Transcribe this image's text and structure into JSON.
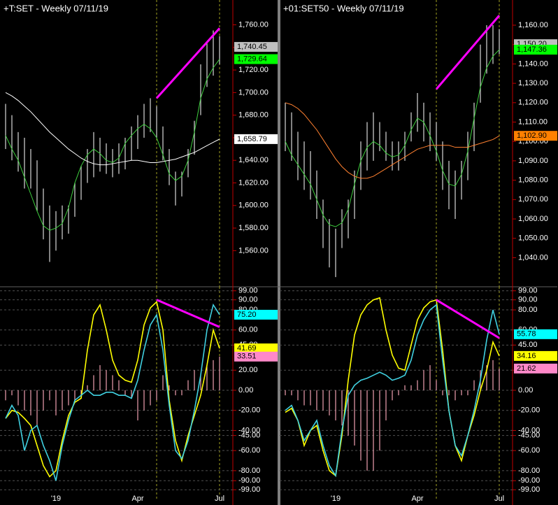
{
  "chart_data": [
    {
      "type": "ohlc",
      "title": "+T:SET - Weekly  07/11/19",
      "ylim": [
        1528,
        1782
      ],
      "yticks": [
        {
          "value": 1560,
          "label": "1,560.00"
        },
        {
          "value": 1580,
          "label": "1,580.00"
        },
        {
          "value": 1600,
          "label": "1,600.00"
        },
        {
          "value": 1620,
          "label": "1,620.00"
        },
        {
          "value": 1640,
          "label": "1,640.00"
        },
        {
          "value": 1660,
          "label": "1,660.00"
        },
        {
          "value": 1680,
          "label": "1,680.00"
        },
        {
          "value": 1700,
          "label": "1,700.00"
        },
        {
          "value": 1720,
          "label": "1,720.00"
        },
        {
          "value": 1740,
          "label": "1,740.00"
        },
        {
          "value": 1760,
          "label": "1,760.00"
        }
      ],
      "bar_color": "#d8d8d8",
      "high": [
        1690,
        1680,
        1665,
        1660,
        1650,
        1640,
        1615,
        1600,
        1595,
        1600,
        1600,
        1620,
        1635,
        1650,
        1665,
        1660,
        1655,
        1650,
        1655,
        1660,
        1670,
        1680,
        1690,
        1695,
        1688,
        1670,
        1650,
        1630,
        1630,
        1650,
        1675,
        1725,
        1745,
        1755,
        1750
      ],
      "low": [
        1650,
        1640,
        1630,
        1615,
        1615,
        1595,
        1570,
        1550,
        1560,
        1570,
        1575,
        1590,
        1605,
        1620,
        1625,
        1630,
        1628,
        1625,
        1628,
        1632,
        1640,
        1650,
        1660,
        1665,
        1660,
        1640,
        1618,
        1600,
        1608,
        1625,
        1645,
        1680,
        1705,
        1715,
        1725
      ],
      "lines": [
        {
          "color": "#3ecf3e",
          "values": [
            1662,
            1650,
            1640,
            1625,
            1610,
            1595,
            1582,
            1578,
            1580,
            1584,
            1598,
            1620,
            1635,
            1645,
            1650,
            1646,
            1640,
            1638,
            1642,
            1655,
            1662,
            1668,
            1672,
            1668,
            1660,
            1645,
            1628,
            1622,
            1626,
            1640,
            1665,
            1695,
            1712,
            1722,
            1729.64
          ]
        },
        {
          "color": "#ffffff",
          "values": [
            1700,
            1697,
            1693,
            1688,
            1683,
            1677,
            1671,
            1665,
            1660,
            1655,
            1650,
            1646,
            1642,
            1639,
            1637,
            1636,
            1636,
            1637,
            1638,
            1639,
            1640,
            1640,
            1639,
            1638,
            1638,
            1639,
            1640,
            1641,
            1643,
            1645,
            1647,
            1650,
            1653,
            1656,
            1658.79
          ]
        }
      ],
      "trend": {
        "color": "#ff00ff",
        "x": [
          24,
          34
        ],
        "values": [
          1695,
          1757
        ]
      },
      "value_labels": [
        {
          "value": 1740.45,
          "label": "1,740.45",
          "color": "#c0c0c0"
        },
        {
          "value": 1729.64,
          "label": "1,729.64",
          "color": "#00ff00"
        },
        {
          "value": 1658.79,
          "label": "1,658.79",
          "color": "#ffffff"
        }
      ]
    },
    {
      "type": "oscillator",
      "ylim": [
        -110,
        103
      ],
      "grid": true,
      "yticks": [
        {
          "value": 99,
          "label": "99.00"
        },
        {
          "value": 90,
          "label": "90.00"
        },
        {
          "value": 80,
          "label": "80.00"
        },
        {
          "value": 60,
          "label": "60.00"
        },
        {
          "value": 45,
          "label": "45.00"
        },
        {
          "value": 20,
          "label": "20.00"
        },
        {
          "value": 0,
          "label": "0.00"
        },
        {
          "value": -20,
          "label": "-20.00"
        },
        {
          "value": -40,
          "label": "-40.00"
        },
        {
          "value": -45,
          "label": "-45.00"
        },
        {
          "value": -60,
          "label": "-60.00"
        },
        {
          "value": -80,
          "label": "-80.00"
        },
        {
          "value": -90,
          "label": "-90.00"
        },
        {
          "value": -99,
          "label": "-99.00"
        }
      ],
      "categories": [
        null,
        null,
        null,
        null,
        null,
        null,
        null,
        null,
        "'19",
        null,
        null,
        null,
        null,
        null,
        null,
        null,
        null,
        null,
        null,
        null,
        null,
        "Apr",
        null,
        null,
        null,
        null,
        null,
        null,
        null,
        null,
        null,
        null,
        null,
        null,
        "Jul"
      ],
      "histogram": {
        "color": "#f0a0b0",
        "values": [
          -10,
          -5,
          -15,
          -20,
          -25,
          -35,
          -20,
          -10,
          -25,
          -20,
          -15,
          -12,
          -8,
          5,
          15,
          25,
          20,
          15,
          10,
          -5,
          -8,
          -30,
          -20,
          -15,
          -10,
          15,
          5,
          -5,
          -5,
          10,
          20,
          15,
          25,
          30,
          33.51
        ]
      },
      "lines": [
        {
          "color": "#ffff00",
          "values": [
            -28,
            -20,
            -22,
            -28,
            -35,
            -55,
            -75,
            -86,
            -80,
            -50,
            -25,
            -12,
            -8,
            40,
            75,
            85,
            60,
            30,
            15,
            10,
            8,
            30,
            65,
            82,
            88,
            60,
            -10,
            -50,
            -70,
            -45,
            -25,
            -5,
            25,
            60,
            41.69
          ]
        },
        {
          "color": "#40d0e0",
          "values": [
            -28,
            -15,
            -25,
            -60,
            -40,
            -35,
            -55,
            -70,
            -90,
            -55,
            -30,
            -10,
            -5,
            0,
            -5,
            -5,
            -2,
            -2,
            -5,
            -5,
            -8,
            10,
            40,
            65,
            75,
            40,
            -15,
            -60,
            -68,
            -50,
            -20,
            15,
            60,
            85,
            75.2
          ]
        }
      ],
      "trend": {
        "color": "#ff00ff",
        "x": [
          24,
          34
        ],
        "values": [
          90,
          63
        ]
      },
      "value_labels": [
        {
          "value": 75.2,
          "label": "75.20",
          "color": "#00ffff"
        },
        {
          "value": 41.69,
          "label": "41.69",
          "color": "#ffff00"
        },
        {
          "value": 33.51,
          "label": "33.51",
          "color": "#ff88c8"
        }
      ]
    },
    {
      "type": "ohlc",
      "title": "+01:SET50 - Weekly  07/11/19",
      "ylim": [
        1025,
        1173
      ],
      "yticks": [
        {
          "value": 1040,
          "label": "1,040.00"
        },
        {
          "value": 1050,
          "label": "1,050.00"
        },
        {
          "value": 1060,
          "label": "1,060.00"
        },
        {
          "value": 1070,
          "label": "1,070.00"
        },
        {
          "value": 1080,
          "label": "1,080.00"
        },
        {
          "value": 1090,
          "label": "1,090.00"
        },
        {
          "value": 1100,
          "label": "1,100.00"
        },
        {
          "value": 1110,
          "label": "1,110.00"
        },
        {
          "value": 1120,
          "label": "1,120.00"
        },
        {
          "value": 1130,
          "label": "1,130.00"
        },
        {
          "value": 1140,
          "label": "1,140.00"
        },
        {
          "value": 1150,
          "label": "1,150.00"
        },
        {
          "value": 1160,
          "label": "1,160.00"
        }
      ],
      "bar_color": "#d8d8d8",
      "high": [
        1120,
        1115,
        1105,
        1100,
        1095,
        1085,
        1070,
        1060,
        1055,
        1065,
        1070,
        1085,
        1100,
        1110,
        1115,
        1110,
        1105,
        1100,
        1100,
        1105,
        1115,
        1125,
        1120,
        1115,
        1110,
        1100,
        1090,
        1085,
        1090,
        1105,
        1120,
        1150,
        1160,
        1160,
        1158
      ],
      "low": [
        1095,
        1090,
        1080,
        1075,
        1070,
        1060,
        1045,
        1035,
        1030,
        1045,
        1050,
        1060,
        1075,
        1085,
        1090,
        1095,
        1090,
        1085,
        1085,
        1090,
        1100,
        1105,
        1100,
        1095,
        1090,
        1075,
        1065,
        1060,
        1070,
        1080,
        1095,
        1120,
        1135,
        1140,
        1145
      ],
      "lines": [
        {
          "color": "#3ecf3e",
          "values": [
            1100,
            1093,
            1088,
            1083,
            1078,
            1070,
            1062,
            1057,
            1056,
            1058,
            1065,
            1078,
            1090,
            1097,
            1100,
            1098,
            1094,
            1092,
            1093,
            1098,
            1106,
            1112,
            1110,
            1103,
            1095,
            1085,
            1078,
            1077,
            1083,
            1095,
            1112,
            1128,
            1138,
            1144,
            1147.36
          ]
        },
        {
          "color": "#ff8030",
          "values": [
            1120,
            1119,
            1117,
            1114,
            1110,
            1106,
            1101,
            1096,
            1091,
            1087,
            1084,
            1082,
            1081,
            1081,
            1082,
            1084,
            1086,
            1088,
            1090,
            1092,
            1094,
            1096,
            1097,
            1098,
            1098,
            1098,
            1098,
            1097,
            1097,
            1097,
            1098,
            1099,
            1100,
            1101,
            1102.9
          ]
        }
      ],
      "trend": {
        "color": "#ff00ff",
        "x": [
          24,
          34
        ],
        "values": [
          1127,
          1165
        ]
      },
      "value_labels": [
        {
          "value": 1150.2,
          "label": "1,150.20",
          "color": "#c0c0c0"
        },
        {
          "value": 1147.36,
          "label": "1,147.36",
          "color": "#00ff00"
        },
        {
          "value": 1102.9,
          "label": "1,102.90",
          "color": "#ff8000"
        }
      ]
    },
    {
      "type": "oscillator",
      "ylim": [
        -110,
        103
      ],
      "grid": true,
      "yticks": [
        {
          "value": 99,
          "label": "99.00"
        },
        {
          "value": 90,
          "label": "90.00"
        },
        {
          "value": 80,
          "label": "80.00"
        },
        {
          "value": 60,
          "label": "60.00"
        },
        {
          "value": 45,
          "label": "45.00"
        },
        {
          "value": 20,
          "label": "20.00"
        },
        {
          "value": 0,
          "label": "0.00"
        },
        {
          "value": -20,
          "label": "-20.00"
        },
        {
          "value": -40,
          "label": "-40.00"
        },
        {
          "value": -45,
          "label": "-45.00"
        },
        {
          "value": -60,
          "label": "-60.00"
        },
        {
          "value": -80,
          "label": "-80.00"
        },
        {
          "value": -90,
          "label": "-90.00"
        },
        {
          "value": -99,
          "label": "-99.00"
        }
      ],
      "categories": [
        null,
        null,
        null,
        null,
        null,
        null,
        null,
        null,
        "'19",
        null,
        null,
        null,
        null,
        null,
        null,
        null,
        null,
        null,
        null,
        null,
        null,
        "Apr",
        null,
        null,
        null,
        null,
        null,
        null,
        null,
        null,
        null,
        null,
        null,
        null,
        "Jul"
      ],
      "histogram": {
        "color": "#f0a0b0",
        "values": [
          -5,
          -5,
          -10,
          -15,
          -15,
          -20,
          -20,
          -25,
          -30,
          -35,
          -45,
          -55,
          -70,
          -80,
          -80,
          -60,
          -30,
          -10,
          -5,
          5,
          5,
          10,
          20,
          25,
          10,
          -5,
          -5,
          -10,
          -5,
          -5,
          10,
          20,
          25,
          30,
          21.62
        ]
      },
      "lines": [
        {
          "color": "#ffff00",
          "values": [
            -22,
            -18,
            -30,
            -55,
            -40,
            -35,
            -60,
            -80,
            -85,
            -45,
            10,
            55,
            75,
            85,
            90,
            92,
            60,
            35,
            22,
            20,
            45,
            70,
            82,
            88,
            90,
            40,
            -20,
            -55,
            -70,
            -45,
            -25,
            0,
            20,
            48,
            34.16
          ]
        },
        {
          "color": "#40d0e0",
          "values": [
            -20,
            -15,
            -30,
            -50,
            -40,
            -30,
            -55,
            -75,
            -85,
            -40,
            -5,
            5,
            10,
            12,
            15,
            18,
            15,
            10,
            12,
            15,
            30,
            55,
            70,
            80,
            85,
            30,
            -20,
            -55,
            -65,
            -45,
            -20,
            10,
            50,
            80,
            55.78
          ]
        }
      ],
      "trend": {
        "color": "#ff00ff",
        "x": [
          24,
          34
        ],
        "values": [
          90,
          52
        ]
      },
      "value_labels": [
        {
          "value": 55.78,
          "label": "55.78",
          "color": "#00ffff"
        },
        {
          "value": 34.16,
          "label": "34.16",
          "color": "#ffff00"
        },
        {
          "value": 21.62,
          "label": "21.62",
          "color": "#ff88c8"
        }
      ]
    }
  ]
}
